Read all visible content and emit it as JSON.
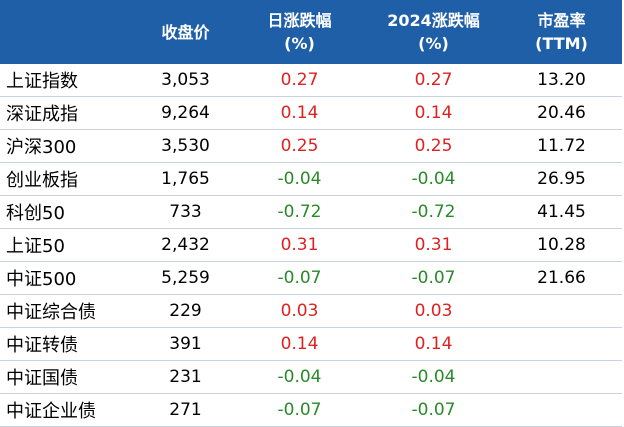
{
  "colors": {
    "header_bg": "#1f5fa8",
    "header_text": "#ffffff",
    "up": "#e02020",
    "down": "#2a8a2a"
  },
  "header": {
    "name": "",
    "close": "收盘价",
    "daily_line1": "日涨跌幅",
    "daily_line2": "(%)",
    "ytd_line1": "2024涨跌幅",
    "ytd_line2": "(%)",
    "pe_line1": "市盈率",
    "pe_line2": "(TTM)"
  },
  "rows": [
    {
      "name": "上证指数",
      "close": "3,053",
      "daily": "0.27",
      "ytd": "0.27",
      "pe": "13.20",
      "dir": "up"
    },
    {
      "name": "深证成指",
      "close": "9,264",
      "daily": "0.14",
      "ytd": "0.14",
      "pe": "20.46",
      "dir": "up"
    },
    {
      "name": "沪深300",
      "close": "3,530",
      "daily": "0.25",
      "ytd": "0.25",
      "pe": "11.72",
      "dir": "up"
    },
    {
      "name": "创业板指",
      "close": "1,765",
      "daily": "-0.04",
      "ytd": "-0.04",
      "pe": "26.95",
      "dir": "down"
    },
    {
      "name": "科创50",
      "close": "733",
      "daily": "-0.72",
      "ytd": "-0.72",
      "pe": "41.45",
      "dir": "down"
    },
    {
      "name": "上证50",
      "close": "2,432",
      "daily": "0.31",
      "ytd": "0.31",
      "pe": "10.28",
      "dir": "up"
    },
    {
      "name": "中证500",
      "close": "5,259",
      "daily": "-0.07",
      "ytd": "-0.07",
      "pe": "21.66",
      "dir": "down"
    },
    {
      "name": "中证综合债",
      "close": "229",
      "daily": "0.03",
      "ytd": "0.03",
      "pe": "",
      "dir": "up"
    },
    {
      "name": "中证转债",
      "close": "391",
      "daily": "0.14",
      "ytd": "0.14",
      "pe": "",
      "dir": "up"
    },
    {
      "name": "中证国债",
      "close": "231",
      "daily": "-0.04",
      "ytd": "-0.04",
      "pe": "",
      "dir": "down"
    },
    {
      "name": "中证企业债",
      "close": "271",
      "daily": "-0.07",
      "ytd": "-0.07",
      "pe": "",
      "dir": "down"
    }
  ]
}
